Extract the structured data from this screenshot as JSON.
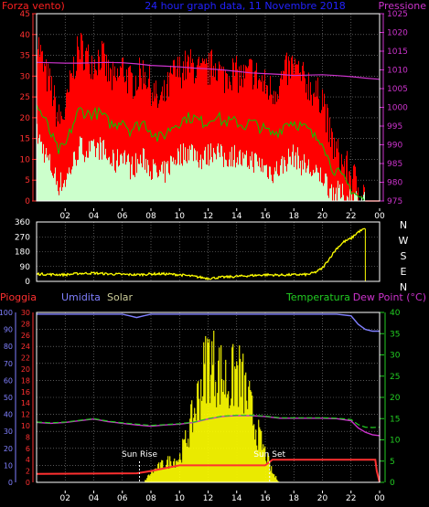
{
  "colors": {
    "background": "#000000",
    "frame": "#ffffff",
    "grid": "#8a8a8a",
    "wind_max": "#ff0000",
    "wind_avg": "#00cc00",
    "wind_min": "#ccffcc",
    "pressure": "#cc33cc",
    "direction": "#ffff00",
    "rain": "#ff3030",
    "humidity": "#8080ff",
    "solar": "#ffff00",
    "temperature": "#22cc22",
    "dewpoint": "#cc33cc",
    "annotation": "#ffffff"
  },
  "top_header": {
    "left_label": "Forza vento)",
    "center_label": "24 hour graph data, 11 Novembre 2018",
    "right_label": "Pressione"
  },
  "x_ticks": [
    "02",
    "04",
    "06",
    "08",
    "10",
    "12",
    "14",
    "16",
    "18",
    "20",
    "22",
    "00"
  ],
  "chart_data": [
    {
      "type": "area",
      "name": "wind-and-pressure",
      "x_range": [
        0,
        24
      ],
      "ylim": [
        0,
        45
      ],
      "y_ticks": [
        0,
        5,
        10,
        15,
        20,
        25,
        30,
        35,
        40,
        45
      ],
      "y2lim": [
        975,
        1025
      ],
      "y2_ticks": [
        975,
        980,
        985,
        990,
        995,
        1000,
        1005,
        1010,
        1015,
        1020,
        1025
      ],
      "grid": true,
      "wind_max": {
        "x": [
          0,
          0.5,
          1,
          1.5,
          2,
          2.5,
          3,
          3.5,
          4,
          4.5,
          5,
          5.5,
          6,
          6.5,
          7,
          7.5,
          8,
          8.5,
          9,
          9.5,
          10,
          10.5,
          11,
          11.5,
          12,
          12.5,
          13,
          13.5,
          14,
          14.5,
          15,
          15.5,
          16,
          16.5,
          17,
          17.5,
          18,
          18.5,
          19,
          19.5,
          20,
          20.5,
          21,
          21.5,
          22,
          22.5,
          23
        ],
        "values": [
          38,
          30,
          26,
          18,
          20,
          30,
          36,
          33,
          32,
          34,
          29,
          27,
          31,
          27,
          28,
          30,
          26,
          22,
          24,
          29,
          30,
          31,
          31,
          29,
          30,
          32,
          28,
          30,
          29,
          28,
          30,
          28,
          26,
          25,
          27,
          30,
          31,
          28,
          27,
          24,
          24,
          14,
          10,
          7,
          5,
          2,
          0
        ]
      },
      "wind_avg": {
        "x": [
          0,
          0.5,
          1,
          1.5,
          2,
          2.5,
          3,
          3.5,
          4,
          4.5,
          5,
          5.5,
          6,
          6.5,
          7,
          7.5,
          8,
          8.5,
          9,
          9.5,
          10,
          10.5,
          11,
          11.5,
          12,
          12.5,
          13,
          13.5,
          14,
          14.5,
          15,
          15.5,
          16,
          16.5,
          17,
          17.5,
          18,
          18.5,
          19,
          19.5,
          20,
          20.5,
          21,
          21.5,
          22,
          22.5,
          23
        ],
        "values": [
          23,
          20,
          16,
          12,
          13,
          18,
          22,
          21,
          21,
          21,
          19,
          18,
          20,
          17,
          18,
          19,
          17,
          15,
          16,
          18,
          19,
          20,
          20,
          19,
          19,
          21,
          19,
          19,
          19,
          18,
          19,
          18,
          17,
          16,
          17,
          19,
          19,
          18,
          17,
          15,
          15,
          9,
          7,
          5,
          3,
          1,
          0
        ]
      },
      "wind_min": {
        "x": [
          0,
          0.5,
          1,
          1.5,
          2,
          2.5,
          3,
          3.5,
          4,
          4.5,
          5,
          5.5,
          6,
          6.5,
          7,
          7.5,
          8,
          8.5,
          9,
          9.5,
          10,
          10.5,
          11,
          11.5,
          12,
          12.5,
          13,
          13.5,
          14,
          14.5,
          15,
          15.5,
          16,
          16.5,
          17,
          17.5,
          18,
          18.5,
          19,
          19.5,
          20,
          20.5,
          21,
          21.5,
          22,
          22.5,
          23
        ],
        "values": [
          16,
          12,
          8,
          4,
          5,
          9,
          13,
          12,
          12,
          13,
          10,
          9,
          12,
          8,
          9,
          10,
          8,
          6,
          7,
          10,
          11,
          12,
          12,
          10,
          11,
          13,
          10,
          11,
          11,
          9,
          10,
          9,
          8,
          7,
          8,
          10,
          11,
          9,
          8,
          6,
          6,
          3,
          2,
          1,
          1,
          0,
          0
        ]
      },
      "pressure": {
        "x": [
          0,
          1,
          2,
          3,
          4,
          5,
          6,
          7,
          8,
          9,
          10,
          11,
          12,
          13,
          14,
          15,
          16,
          17,
          18,
          19,
          20,
          21,
          22,
          23,
          24
        ],
        "values": [
          1012,
          1011.9,
          1011.8,
          1011.8,
          1011.9,
          1012,
          1011.9,
          1011.6,
          1011.2,
          1011,
          1010.8,
          1010.5,
          1010.3,
          1010,
          1009.6,
          1009.2,
          1009,
          1008.8,
          1008.5,
          1008.6,
          1008.7,
          1008.5,
          1008.2,
          1007.8,
          1007.5
        ]
      }
    },
    {
      "type": "line",
      "name": "wind-direction",
      "x_range": [
        0,
        24
      ],
      "ylim": [
        0,
        360
      ],
      "y_ticks": [
        0,
        90,
        180,
        270,
        360
      ],
      "right_labels": [
        "N",
        "W",
        "S",
        "E",
        "N"
      ],
      "grid": true,
      "series": [
        {
          "x": [
            0,
            1,
            2,
            3,
            4,
            5,
            6,
            7,
            8,
            9,
            10,
            11,
            12,
            13,
            14,
            15,
            16,
            17,
            18,
            19,
            19.5,
            20,
            20.5,
            21,
            21.5,
            22,
            22.5,
            23
          ],
          "values": [
            45,
            42,
            40,
            48,
            50,
            45,
            42,
            40,
            45,
            45,
            40,
            30,
            18,
            25,
            30,
            35,
            40,
            38,
            40,
            42,
            55,
            80,
            140,
            200,
            240,
            260,
            300,
            320
          ]
        }
      ]
    },
    {
      "type": "line",
      "name": "rain-humidity-solar-temperature",
      "header": {
        "rain": "Pioggia",
        "humidity": "Umidita",
        "solar": "Solar",
        "temperature": "Temperatura",
        "dewpoint": "Dew Point (°C)"
      },
      "x_range": [
        0,
        24
      ],
      "y_outer_lim": [
        0,
        100
      ],
      "y_outer_ticks": [
        0,
        10,
        20,
        30,
        40,
        50,
        60,
        70,
        80,
        90,
        100
      ],
      "y_inner_lim": [
        0,
        30
      ],
      "y_inner_ticks": [
        0,
        2,
        4,
        6,
        8,
        10,
        12,
        14,
        16,
        18,
        20,
        22,
        24,
        26,
        28,
        30
      ],
      "y_right_lim": [
        0,
        40
      ],
      "y_right_ticks": [
        0,
        5,
        10,
        15,
        20,
        25,
        30,
        35,
        40
      ],
      "grid": true,
      "annotations": [
        {
          "text": "Sun Rise",
          "x": 7.2
        },
        {
          "text": "Sun Set",
          "x": 16.3
        }
      ],
      "humidity": {
        "x": [
          0,
          1,
          2,
          3,
          4,
          5,
          6,
          6.5,
          7,
          7.5,
          8,
          9,
          10,
          11,
          12,
          13,
          14,
          15,
          16,
          17,
          18,
          19,
          20,
          21,
          22,
          22.5,
          23,
          23.5,
          24
        ],
        "values": [
          99,
          99,
          99,
          99,
          99,
          99,
          99,
          98,
          97,
          98,
          99,
          99,
          99,
          99,
          99,
          99,
          99,
          99,
          99,
          99,
          99,
          99,
          99,
          99,
          98,
          93,
          90,
          89,
          89
        ]
      },
      "temperature": {
        "x": [
          0,
          1,
          2,
          3,
          4,
          5,
          6,
          7,
          8,
          9,
          10,
          11,
          12,
          13,
          14,
          15,
          16,
          17,
          18,
          19,
          20,
          21,
          22,
          22.5,
          23,
          23.5,
          24
        ],
        "values": [
          14.2,
          14,
          14.2,
          14.6,
          15,
          14.4,
          14,
          13.7,
          13.4,
          13.6,
          13.8,
          14.2,
          15,
          15.6,
          15.8,
          15.8,
          15.6,
          15.2,
          15.2,
          15.2,
          15.2,
          15.1,
          14.8,
          13.6,
          13,
          12.9,
          13
        ]
      },
      "dewpoint": {
        "x": [
          0,
          1,
          2,
          3,
          4,
          5,
          6,
          7,
          8,
          9,
          10,
          11,
          12,
          13,
          14,
          15,
          16,
          17,
          18,
          19,
          20,
          21,
          22,
          22.5,
          23,
          23.5,
          24
        ],
        "values": [
          14.1,
          13.9,
          14.1,
          14.5,
          14.9,
          14.3,
          13.9,
          13.5,
          13.2,
          13.5,
          13.7,
          14.1,
          14.9,
          15.5,
          15.7,
          15.7,
          15.5,
          15.1,
          15.1,
          15.1,
          15.1,
          15,
          14.5,
          12.8,
          11.8,
          11.2,
          11
        ]
      },
      "rain": {
        "x": [
          0,
          7,
          8,
          9,
          10,
          11,
          12,
          13,
          14,
          15,
          16,
          16.5,
          17,
          18,
          20,
          22,
          23.7,
          23.8,
          24
        ],
        "values": [
          1.5,
          1.6,
          2,
          2.5,
          3,
          3,
          3,
          3,
          3,
          3,
          3,
          4,
          4,
          4,
          4,
          4,
          4,
          2,
          0
        ]
      },
      "solar": {
        "x": [
          0,
          7.5,
          8,
          9,
          10,
          10.5,
          11,
          11.5,
          12,
          12.5,
          13,
          13.5,
          14,
          14.5,
          15,
          15.5,
          16,
          16.5,
          17,
          24
        ],
        "values": [
          0,
          0,
          2,
          4,
          5,
          9,
          14,
          20,
          26,
          24,
          22,
          20,
          23,
          20,
          15,
          10,
          6,
          2,
          0,
          0
        ]
      }
    }
  ]
}
